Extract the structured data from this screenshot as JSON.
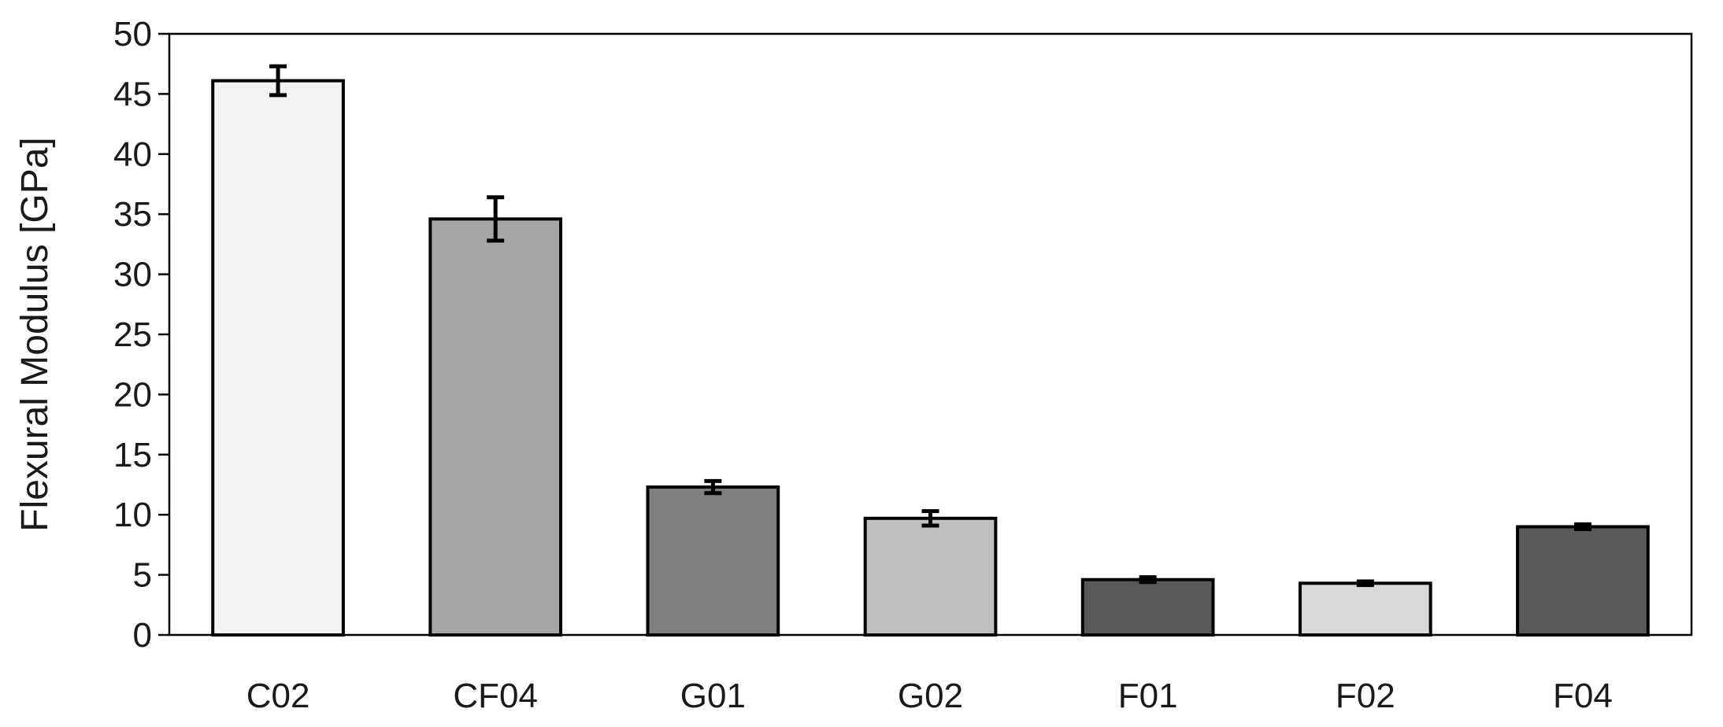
{
  "chart_data": {
    "type": "bar",
    "title": "",
    "xlabel": "",
    "ylabel": "Flexural Modulus [GPa]",
    "ylim": [
      0,
      50
    ],
    "yticks": [
      0,
      5,
      10,
      15,
      20,
      25,
      30,
      35,
      40,
      45,
      50
    ],
    "grid": false,
    "legend": "none",
    "categories": [
      "C02",
      "CF04",
      "G01",
      "G02",
      "F01",
      "F02",
      "F04"
    ],
    "values": [
      46.1,
      34.6,
      12.3,
      9.7,
      4.6,
      4.3,
      9.0
    ],
    "errors": [
      1.2,
      1.8,
      0.5,
      0.6,
      0.2,
      0.15,
      0.2
    ],
    "colors": [
      "#f2f2f2",
      "#a6a6a6",
      "#7f7f7f",
      "#bfbfbf",
      "#595959",
      "#d9d9d9",
      "#595959"
    ],
    "edge_color": "#000000"
  }
}
